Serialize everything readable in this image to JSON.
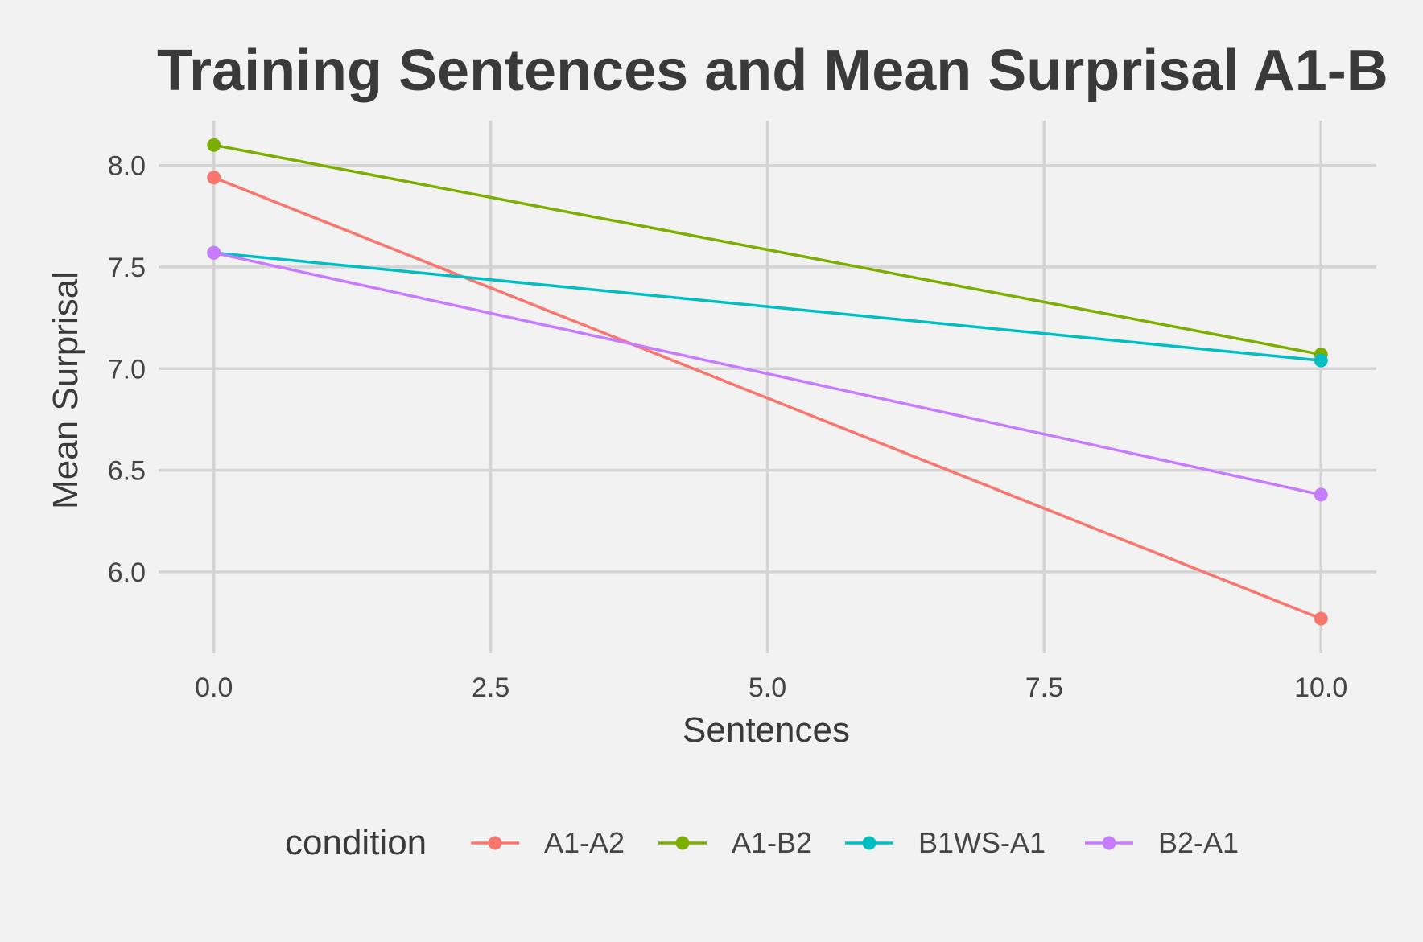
{
  "chart_data": {
    "type": "line",
    "title": "Training Sentences and Mean Surprisal A1-B",
    "xlabel": "Sentences",
    "ylabel": "Mean Surprisal",
    "xlim": [
      -0.5,
      10.5
    ],
    "ylim": [
      5.6,
      8.22
    ],
    "x_ticks": [
      0.0,
      2.5,
      5.0,
      7.5,
      10.0
    ],
    "x_tick_labels": [
      "0.0",
      "2.5",
      "5.0",
      "7.5",
      "10.0"
    ],
    "y_ticks": [
      6.0,
      6.5,
      7.0,
      7.5,
      8.0
    ],
    "y_tick_labels": [
      "6.0",
      "6.5",
      "7.0",
      "7.5",
      "8.0"
    ],
    "grid": true,
    "legend": {
      "title": "condition",
      "position": "bottom"
    },
    "x": [
      0,
      10
    ],
    "series": [
      {
        "name": "A1-A2",
        "color": "#f8766d",
        "values": [
          7.94,
          5.77
        ]
      },
      {
        "name": "A1-B2",
        "color": "#7cae00",
        "values": [
          8.1,
          7.07
        ]
      },
      {
        "name": "B1WS-A1",
        "color": "#00bfc4",
        "values": [
          7.57,
          7.04
        ]
      },
      {
        "name": "B2-A1",
        "color": "#c77cff",
        "values": [
          7.57,
          6.38
        ]
      }
    ]
  }
}
